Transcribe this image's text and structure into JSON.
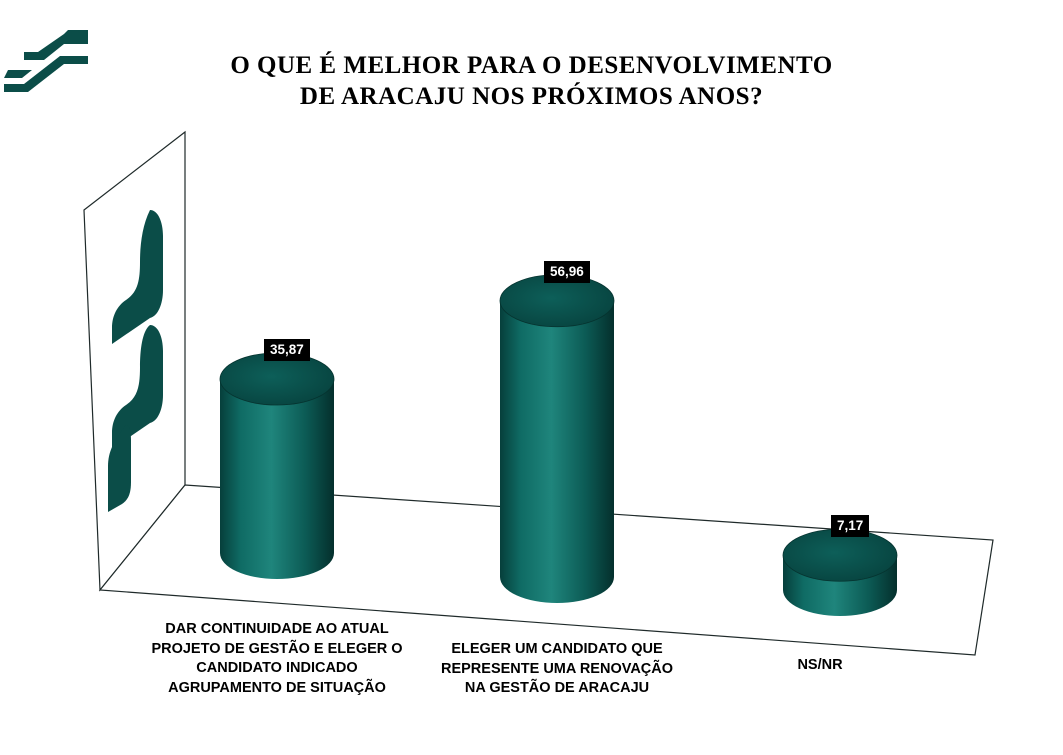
{
  "title": {
    "line1": "O QUE É MELHOR PARA O DESENVOLVIMENTO",
    "line2": "DE ARACAJU NOS PRÓXIMOS ANOS?"
  },
  "colors": {
    "bar": "#0d5e58",
    "bar_dark": "#053b37",
    "bar_light": "#2f9a8f",
    "top": "#0a4f4a",
    "wall_logo": "#0b4d48"
  },
  "chart_data": {
    "type": "bar",
    "style": "3d-cylinder",
    "categories": [
      "DAR CONTINUIDADE AO ATUAL PROJETO DE GESTÃO E ELEGER O CANDIDATO INDICADO AGRUPAMENTO DE SITUAÇÃO",
      "ELEGER UM CANDIDATO QUE REPRESENTE UMA RENOVAÇÃO NA GESTÃO DE ARACAJU",
      "NS/NR"
    ],
    "category_lines": [
      [
        "DAR CONTINUIDADE AO ATUAL",
        "PROJETO DE GESTÃO E ELEGER O",
        "CANDIDATO INDICADO",
        "AGRUPAMENTO DE SITUAÇÃO"
      ],
      [
        "ELEGER UM CANDIDATO QUE",
        "REPRESENTE UMA RENOVAÇÃO",
        "NA GESTÃO DE ARACAJU"
      ],
      [
        "NS/NR"
      ]
    ],
    "values": [
      35.87,
      56.96,
      7.17
    ],
    "value_labels": [
      "35,87",
      "56,96",
      "7,17"
    ],
    "title": "O QUE É MELHOR PARA O DESENVOLVIMENTO DE ARACAJU NOS PRÓXIMOS ANOS?",
    "xlabel": "",
    "ylabel": "",
    "ylim": [
      0,
      60
    ],
    "grid": false,
    "legend": "none",
    "data_labels": true
  }
}
